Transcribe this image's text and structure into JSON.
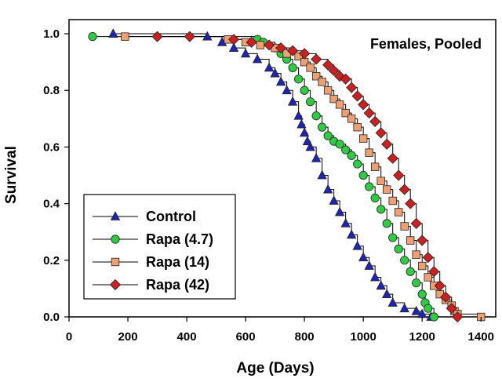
{
  "chart_data": {
    "type": "line",
    "title": "",
    "annotation": "Females, Pooled",
    "xlabel": "Age (Days)",
    "ylabel": "Survival",
    "xlim": [
      0,
      1450
    ],
    "ylim": [
      0,
      1.05
    ],
    "xticks": [
      0,
      200,
      400,
      600,
      800,
      1000,
      1200,
      1400
    ],
    "yticks": [
      0.0,
      0.2,
      0.4,
      0.6,
      0.8,
      1.0
    ],
    "xtick_labels": [
      "0",
      "200",
      "400",
      "600",
      "800",
      "1000",
      "1200",
      "1400"
    ],
    "ytick_labels": [
      "0.0",
      "0.2",
      "0.4",
      "0.6",
      "0.8",
      "1.0"
    ],
    "grid": false,
    "legend_position": "bottom-left",
    "series": [
      {
        "name": "Control",
        "marker": "triangle",
        "color": "#1f24b8",
        "x": [
          150,
          470,
          520,
          560,
          600,
          640,
          680,
          700,
          720,
          740,
          760,
          780,
          790,
          800,
          810,
          820,
          840,
          860,
          880,
          900,
          920,
          940,
          960,
          980,
          1000,
          1020,
          1040,
          1060,
          1080,
          1100,
          1140,
          1180,
          1200,
          1230
        ],
        "y": [
          1.0,
          0.99,
          0.97,
          0.95,
          0.93,
          0.91,
          0.88,
          0.86,
          0.83,
          0.8,
          0.76,
          0.71,
          0.68,
          0.65,
          0.62,
          0.6,
          0.56,
          0.5,
          0.45,
          0.41,
          0.37,
          0.33,
          0.29,
          0.25,
          0.21,
          0.18,
          0.14,
          0.11,
          0.08,
          0.05,
          0.03,
          0.02,
          0.01,
          0.0
        ]
      },
      {
        "name": "Rapa (4.7)",
        "marker": "circle",
        "color": "#2ecc40",
        "x": [
          80,
          640,
          660,
          700,
          720,
          740,
          760,
          780,
          800,
          820,
          840,
          860,
          880,
          900,
          920,
          940,
          960,
          980,
          1000,
          1020,
          1040,
          1060,
          1080,
          1100,
          1120,
          1140,
          1160,
          1180,
          1200,
          1210,
          1220,
          1240
        ],
        "y": [
          0.99,
          0.98,
          0.97,
          0.95,
          0.93,
          0.91,
          0.88,
          0.84,
          0.8,
          0.76,
          0.71,
          0.67,
          0.64,
          0.62,
          0.61,
          0.59,
          0.57,
          0.54,
          0.5,
          0.46,
          0.42,
          0.38,
          0.33,
          0.28,
          0.24,
          0.2,
          0.16,
          0.12,
          0.08,
          0.05,
          0.03,
          0.0
        ]
      },
      {
        "name": "Rapa (14)",
        "marker": "square",
        "color": "#f0a070",
        "x": [
          190,
          540,
          600,
          650,
          700,
          740,
          780,
          800,
          820,
          840,
          860,
          880,
          900,
          920,
          940,
          960,
          980,
          1000,
          1020,
          1040,
          1060,
          1080,
          1100,
          1120,
          1140,
          1160,
          1180,
          1200,
          1220,
          1240,
          1260,
          1280,
          1300,
          1310,
          1320,
          1400
        ],
        "y": [
          0.99,
          0.98,
          0.97,
          0.96,
          0.95,
          0.93,
          0.92,
          0.9,
          0.88,
          0.85,
          0.83,
          0.8,
          0.77,
          0.75,
          0.72,
          0.7,
          0.67,
          0.63,
          0.58,
          0.53,
          0.48,
          0.45,
          0.41,
          0.37,
          0.32,
          0.27,
          0.22,
          0.18,
          0.14,
          0.11,
          0.08,
          0.06,
          0.04,
          0.02,
          0.01,
          0.0
        ]
      },
      {
        "name": "Rapa (42)",
        "marker": "diamond",
        "color": "#cc1f1f",
        "x": [
          300,
          410,
          560,
          620,
          680,
          720,
          760,
          800,
          840,
          880,
          900,
          920,
          940,
          960,
          980,
          1000,
          1020,
          1040,
          1060,
          1080,
          1100,
          1120,
          1140,
          1160,
          1180,
          1200,
          1220,
          1240,
          1260,
          1280,
          1300,
          1320
        ],
        "y": [
          0.99,
          0.99,
          0.98,
          0.97,
          0.96,
          0.95,
          0.94,
          0.93,
          0.91,
          0.89,
          0.87,
          0.85,
          0.84,
          0.81,
          0.78,
          0.75,
          0.72,
          0.69,
          0.65,
          0.61,
          0.56,
          0.5,
          0.45,
          0.4,
          0.33,
          0.27,
          0.21,
          0.16,
          0.11,
          0.07,
          0.03,
          0.0
        ]
      }
    ]
  }
}
